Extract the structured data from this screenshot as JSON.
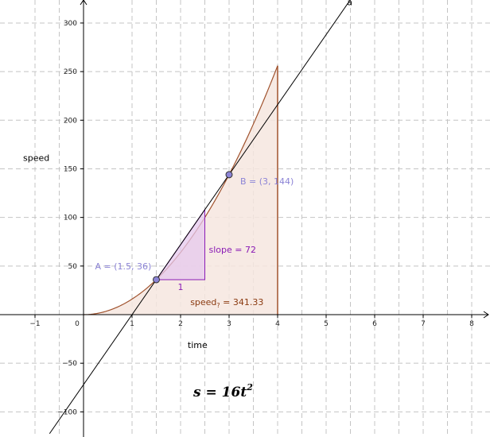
{
  "axes": {
    "x_label": "time",
    "y_label": "speed",
    "x_ticks": [
      "−1",
      "0",
      "1",
      "2",
      "3",
      "4",
      "5",
      "6",
      "7",
      "8"
    ],
    "x_tick_values": [
      -1,
      0,
      1,
      2,
      3,
      4,
      5,
      6,
      7,
      8
    ],
    "y_ticks": [
      "−100",
      "−50",
      "50",
      "100",
      "150",
      "200",
      "250",
      "300"
    ],
    "y_tick_values": [
      -100,
      -50,
      50,
      100,
      150,
      200,
      250,
      300
    ],
    "x_range": [
      -1.6,
      8.3
    ],
    "y_range": [
      -125,
      325
    ],
    "grid": true
  },
  "curve": {
    "function": "16t^2",
    "t_range": [
      0,
      4
    ]
  },
  "area": {
    "label": "speed",
    "subscript": "?",
    "value_text": " = 341.33"
  },
  "line": {
    "name": "a",
    "slope": 72,
    "intercept": -72
  },
  "points": [
    {
      "id": "A",
      "label": "A = (1.5, 36)",
      "x": 1.5,
      "y": 36
    },
    {
      "id": "B",
      "label": "B = (3, 144)",
      "x": 3,
      "y": 144
    }
  ],
  "slope_triangle": {
    "x_start": 1.5,
    "run": 1,
    "run_label": "1",
    "slope_label": "slope = 72"
  },
  "formula": {
    "lhs": "s",
    "rhs": "16t",
    "exponent": "2"
  },
  "colors": {
    "curve": "#a0522d",
    "area_fill": "#f6e6df",
    "triangle": "#8a1bb5",
    "triangle_fill": "#e6c8ee",
    "point_fill": "#8c84d6",
    "grid": "#c4c4c4"
  }
}
